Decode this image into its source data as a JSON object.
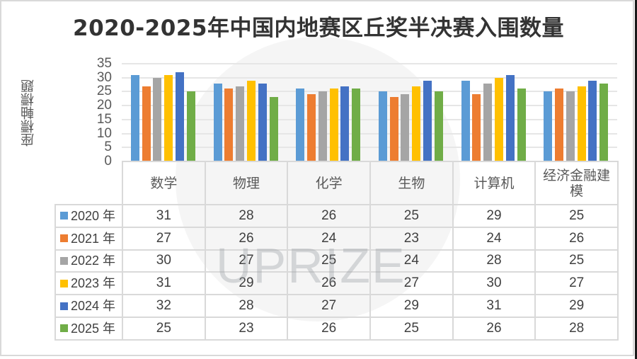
{
  "title": "2020-2025年中国内地赛区丘奖半决赛入围数量",
  "y_axis_title": "座標軸標題",
  "watermark": "UPRIZE",
  "chart_data": {
    "type": "bar",
    "title": "2020-2025年中国内地赛区丘奖半决赛入围数量",
    "xlabel": "",
    "ylabel": "座標軸標題",
    "ylim": [
      0,
      35
    ],
    "yticks": [
      0,
      5,
      10,
      15,
      20,
      25,
      30,
      35
    ],
    "grid": true,
    "legend_position": "data-table-left",
    "categories": [
      "数学",
      "物理",
      "化学",
      "生物",
      "计算机",
      "经济金融建模"
    ],
    "series": [
      {
        "name": "2020 年",
        "color": "#5B9BD5",
        "values": [
          31,
          28,
          26,
          25,
          29,
          25
        ]
      },
      {
        "name": "2021 年",
        "color": "#ED7D31",
        "values": [
          27,
          26,
          24,
          23,
          24,
          26
        ]
      },
      {
        "name": "2022 年",
        "color": "#A5A5A5",
        "values": [
          30,
          27,
          25,
          24,
          28,
          25
        ]
      },
      {
        "name": "2023 年",
        "color": "#FFC000",
        "values": [
          31,
          29,
          26,
          27,
          30,
          27
        ]
      },
      {
        "name": "2024 年",
        "color": "#4472C4",
        "values": [
          32,
          28,
          27,
          29,
          31,
          29
        ]
      },
      {
        "name": "2025 年",
        "color": "#70AD47",
        "values": [
          25,
          23,
          26,
          25,
          26,
          28
        ]
      }
    ]
  }
}
